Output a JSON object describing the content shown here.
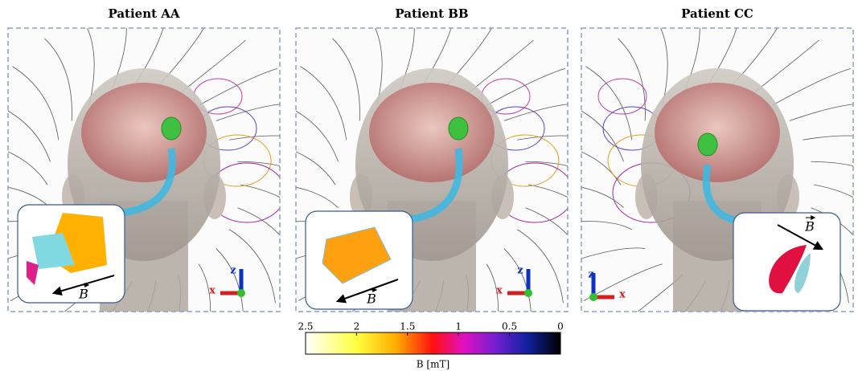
{
  "panels": [
    {
      "title": "Patient AA",
      "vector_label": "B",
      "axis_x": "x",
      "axis_z": "z"
    },
    {
      "title": "Patient BB",
      "vector_label": "B",
      "axis_x": "x",
      "axis_z": "z"
    },
    {
      "title": "Patient CC",
      "vector_label": "B",
      "axis_x": "x",
      "axis_z": "z"
    }
  ],
  "colorbar": {
    "label": "B [mT]",
    "lim": [
      2.5,
      0
    ],
    "ticks": [
      2.5,
      2,
      1.5,
      1,
      0.5,
      0
    ]
  }
}
